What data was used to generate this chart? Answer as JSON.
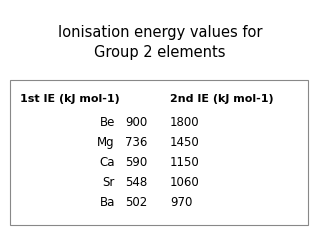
{
  "title": "Ionisation energy values for\nGroup 2 elements",
  "title_fontsize": 10.5,
  "header1": "1st IE (kJ mol-1)",
  "header2": "2nd IE (kJ mol-1)",
  "elements": [
    "Be",
    "Mg",
    "Ca",
    "Sr",
    "Ba"
  ],
  "ie1": [
    900,
    736,
    590,
    548,
    502
  ],
  "ie2": [
    1800,
    1450,
    1150,
    1060,
    970
  ],
  "background": "#ffffff",
  "box_edge": "#888888",
  "text_color": "#000000",
  "header_fontsize": 8.0,
  "data_fontsize": 8.5
}
